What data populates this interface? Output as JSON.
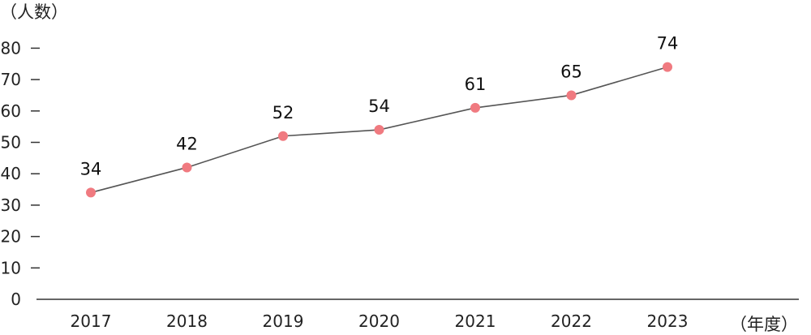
{
  "chart_data": {
    "type": "line",
    "title": "",
    "ylabel": "（人数）",
    "xlabel": "（年度）",
    "categories": [
      "2017",
      "2018",
      "2019",
      "2020",
      "2021",
      "2022",
      "2023"
    ],
    "series": [
      {
        "values": [
          34,
          42,
          52,
          54,
          61,
          65,
          74
        ]
      }
    ],
    "ylim": [
      0,
      80
    ],
    "yticks": [
      "0",
      "10",
      "20",
      "30",
      "40",
      "50",
      "60",
      "70",
      "80"
    ],
    "grid": false,
    "legend": "none",
    "colors": {
      "line": "#555555",
      "marker": "#f07a80",
      "axis": "#333333"
    }
  }
}
